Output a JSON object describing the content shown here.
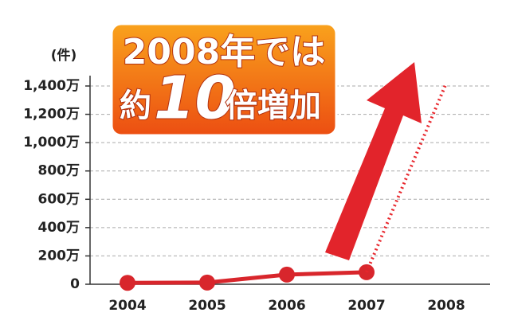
{
  "chart_data": {
    "type": "line",
    "unit_label": "(件)",
    "categories": [
      "2004",
      "2005",
      "2006",
      "2007",
      "2008"
    ],
    "series": [
      {
        "color": "#d8262c",
        "values": [
          100000,
          120000,
          680000,
          850000,
          null
        ]
      },
      {
        "color": "#e8262c",
        "style": "dotted",
        "values": [
          null,
          null,
          null,
          850000,
          14200000
        ]
      }
    ],
    "ylim": [
      0,
      14000000
    ],
    "yticks": [
      0,
      {
        "value": 2000000,
        "label": "200万"
      },
      {
        "value": 4000000,
        "label": "400万"
      },
      {
        "value": 6000000,
        "label": "600万"
      },
      {
        "value": 8000000,
        "label": "800万"
      },
      {
        "value": 10000000,
        "label": "1,000万"
      },
      {
        "value": 12000000,
        "label": "1,200万"
      },
      {
        "value": 14000000,
        "label": "1,400万"
      }
    ],
    "grid": true,
    "annotation": {
      "line1": "2008年では",
      "prefix": "約",
      "number": "10",
      "suffix": "倍増加"
    }
  }
}
